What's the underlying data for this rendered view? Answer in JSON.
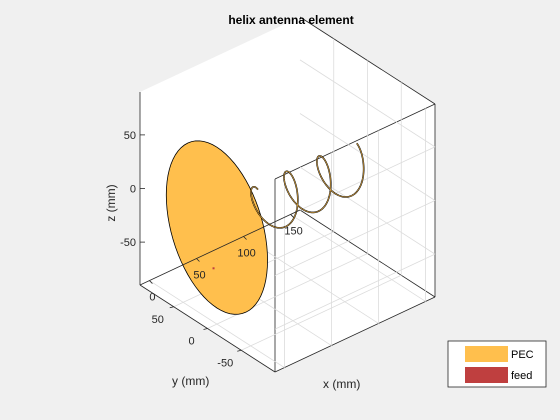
{
  "chart_data": {
    "type": "3d-surface",
    "title": "helix antenna element",
    "xlabel": "x (mm)",
    "ylabel": "y (mm)",
    "zlabel": "z (mm)",
    "xlim": [
      -10,
      160
    ],
    "ylim": [
      -100,
      100
    ],
    "zlim": [
      -90,
      90
    ],
    "xticks": [
      "0",
      "50",
      "100",
      "150"
    ],
    "yticks": [
      "50",
      "0",
      "-50"
    ],
    "zticks": [
      "50",
      "0",
      "-50"
    ],
    "grid": true,
    "box": true,
    "legend": {
      "position": "bottom-right",
      "entries": [
        {
          "label": "PEC",
          "color": "#ffbf4d"
        },
        {
          "label": "feed",
          "color": "#bf3f3f"
        }
      ]
    },
    "ground_plane": {
      "shape": "disc",
      "x": 0,
      "radius_mm": 75,
      "color": "#ffbf4d"
    },
    "helix": {
      "turns": 3,
      "radius_mm": 21,
      "pitch_mm": 36,
      "start_x_mm": 40,
      "end_x_mm": 145,
      "color": "#000000"
    }
  }
}
